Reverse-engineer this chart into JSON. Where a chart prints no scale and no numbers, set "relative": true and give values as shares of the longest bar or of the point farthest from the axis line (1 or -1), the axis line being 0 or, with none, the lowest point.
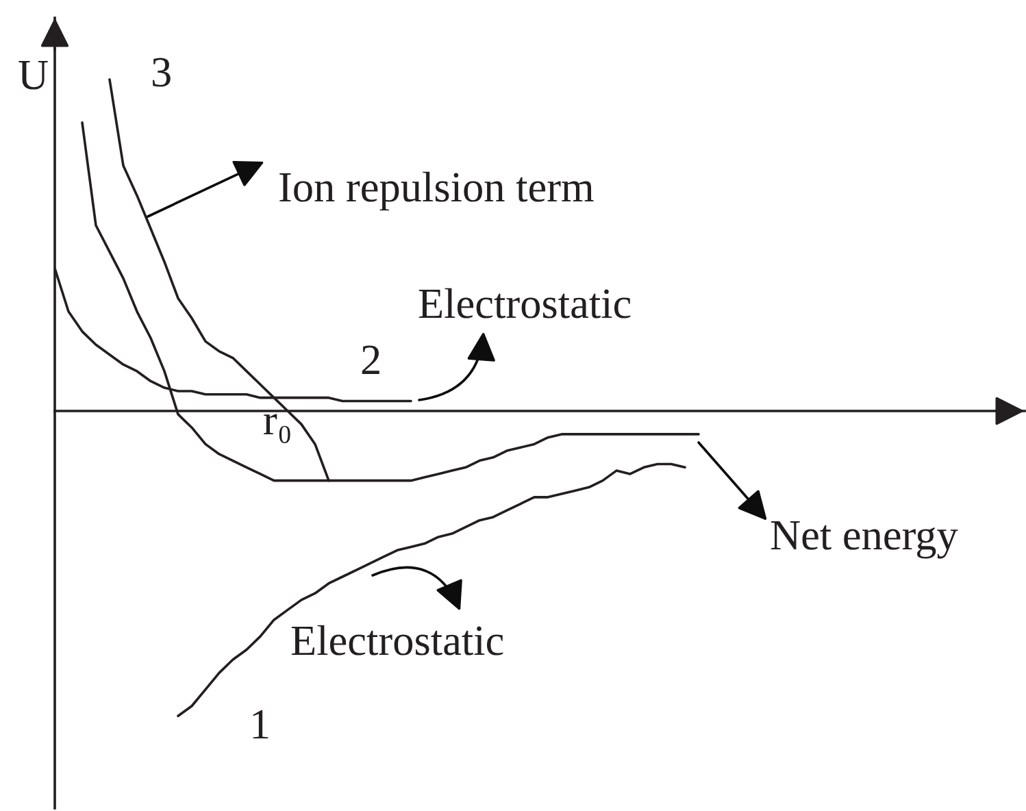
{
  "chart_data": {
    "type": "line",
    "relative": true,
    "ylabel": "U",
    "categories": [
      null,
      null,
      null,
      null,
      null,
      null,
      null,
      null,
      null,
      null,
      null,
      null,
      null,
      null,
      null,
      null,
      null,
      null,
      null,
      null,
      null,
      null,
      null,
      null,
      null,
      null,
      null,
      null,
      null,
      null,
      null,
      null,
      null,
      null,
      null,
      null,
      null,
      null,
      null,
      null,
      null,
      null,
      null,
      null,
      null,
      null,
      null,
      null,
      null,
      null,
      null,
      null,
      null,
      null,
      null,
      null,
      null,
      null,
      null,
      null,
      null,
      null,
      null,
      null,
      null,
      null,
      null,
      null,
      null,
      null,
      null
    ],
    "series": [
      {
        "name": "3",
        "color": "#231f20",
        "values": [
          null,
          null,
          null,
          null,
          1.0,
          0.74,
          0.65,
          0.55,
          0.45,
          0.34,
          0.28,
          0.21,
          0.18,
          0.16,
          0.12,
          0.08,
          0.04,
          0.0,
          -0.04,
          -0.1,
          -0.21,
          null,
          null,
          null,
          null,
          null,
          null,
          null,
          null,
          null,
          null,
          null,
          null,
          null,
          null,
          null,
          null,
          null,
          null,
          null,
          null,
          null,
          null,
          null,
          null,
          null,
          null,
          null,
          null,
          null,
          null,
          null,
          null,
          null,
          null,
          null,
          null,
          null,
          null,
          null,
          null,
          null,
          null,
          null,
          null,
          null,
          null,
          null,
          null,
          null,
          null
        ]
      },
      {
        "color": "#231f20",
        "values": [
          null,
          null,
          0.87,
          0.56,
          0.48,
          0.4,
          0.3,
          0.22,
          0.12,
          -0.01,
          -0.05,
          -0.1,
          -0.13,
          -0.15,
          -0.17,
          -0.19,
          -0.21,
          -0.21,
          -0.21,
          -0.21,
          -0.21,
          -0.21,
          -0.21,
          -0.21,
          -0.21,
          -0.21,
          -0.21,
          -0.2,
          -0.19,
          -0.18,
          -0.17,
          -0.15,
          -0.14,
          -0.12,
          -0.11,
          -0.1,
          -0.08,
          -0.07,
          -0.07,
          -0.07,
          -0.07,
          -0.07,
          -0.07,
          -0.07,
          -0.07,
          -0.07,
          -0.07,
          -0.07,
          null,
          null,
          null,
          null,
          null,
          null,
          null,
          null,
          null,
          null,
          null,
          null,
          null,
          null,
          null,
          null,
          null,
          null,
          null,
          null,
          null,
          null,
          null
        ]
      },
      {
        "name": "2",
        "color": "#231f20",
        "values": [
          0.43,
          0.3,
          0.24,
          0.2,
          0.17,
          0.14,
          0.12,
          0.09,
          0.07,
          0.06,
          0.06,
          0.05,
          0.05,
          0.05,
          0.05,
          0.04,
          0.04,
          0.04,
          0.04,
          0.04,
          0.04,
          0.03,
          0.03,
          0.03,
          0.03,
          0.03,
          0.03,
          null,
          null,
          null,
          null,
          null,
          null,
          null,
          null,
          null,
          null,
          null,
          null,
          null,
          null,
          null,
          null,
          null,
          null,
          null,
          null,
          null,
          null,
          null,
          null,
          null,
          null,
          null,
          null,
          null,
          null,
          null,
          null,
          null,
          null,
          null,
          null,
          null,
          null,
          null,
          null,
          null,
          null,
          null,
          null
        ]
      },
      {
        "name": "1",
        "color": "#231f20",
        "values": [
          null,
          null,
          null,
          null,
          null,
          null,
          null,
          null,
          null,
          -0.92,
          -0.89,
          -0.84,
          -0.79,
          -0.75,
          -0.72,
          -0.68,
          -0.63,
          -0.6,
          -0.57,
          -0.55,
          -0.52,
          -0.5,
          -0.48,
          -0.46,
          -0.44,
          -0.42,
          -0.41,
          -0.4,
          -0.38,
          -0.37,
          -0.35,
          -0.33,
          -0.32,
          -0.3,
          -0.28,
          -0.26,
          -0.26,
          -0.25,
          -0.24,
          -0.23,
          -0.21,
          -0.18,
          -0.19,
          -0.17,
          -0.16,
          -0.16,
          -0.17,
          null,
          null,
          null,
          null,
          null,
          null,
          null,
          null,
          null,
          null,
          null,
          null,
          null,
          null,
          null,
          null,
          null,
          null,
          null,
          null,
          null,
          null,
          null,
          null
        ]
      }
    ],
    "annotations": [
      "Ion repulsion term",
      "Electrostatic",
      "r₀",
      "Net energy",
      "Electrostatic"
    ]
  }
}
